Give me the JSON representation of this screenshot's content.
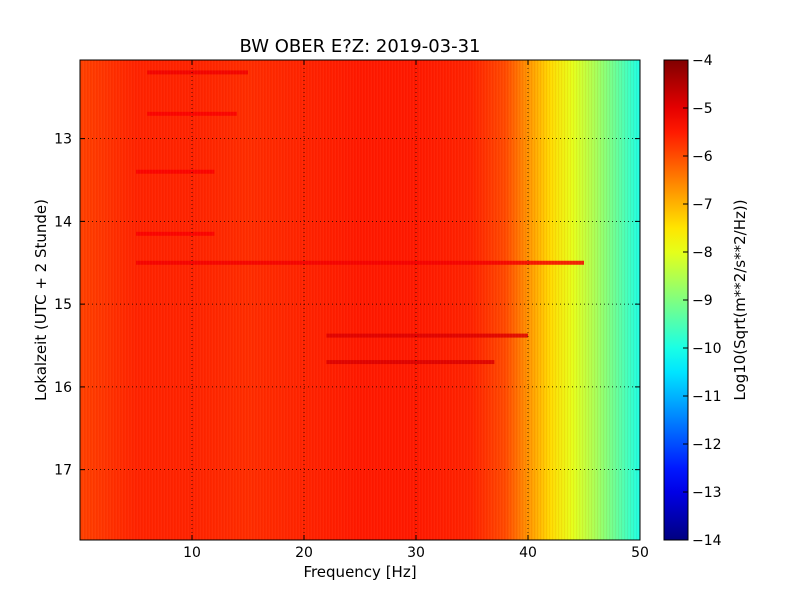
{
  "chart_data": {
    "type": "heatmap",
    "title": "BW OBER E?Z: 2019-03-31",
    "xlabel": "Frequency [Hz]",
    "ylabel": "Lokalzeit (UTC + 2 Stunde)",
    "xlim": [
      0,
      50
    ],
    "ylim": [
      12.05,
      17.85
    ],
    "y_inverted": true,
    "x_ticks": [
      10,
      20,
      30,
      40,
      50
    ],
    "x_tick_labels": [
      "10",
      "20",
      "30",
      "40",
      "50"
    ],
    "y_ticks": [
      13,
      14,
      15,
      16,
      17
    ],
    "y_tick_labels": [
      "13",
      "14",
      "15",
      "16",
      "17"
    ],
    "grid": true,
    "colorbar": {
      "label": "Log10(Sqrt(m**2/s**2/Hz))",
      "range": [
        -14,
        -4
      ],
      "ticks": [
        -4,
        -5,
        -6,
        -7,
        -8,
        -9,
        -10,
        -11,
        -12,
        -13,
        -14
      ],
      "tick_labels": [
        "−4",
        "−5",
        "−6",
        "−7",
        "−8",
        "−9",
        "−10",
        "−11",
        "−12",
        "−13",
        "−14"
      ],
      "colormap": "jet"
    },
    "spectrum_profile": {
      "frequency_hz": [
        0,
        5,
        10,
        15,
        20,
        25,
        30,
        35,
        38,
        40,
        42,
        44,
        46,
        48,
        50
      ],
      "log10_amplitude": [
        -5.9,
        -5.6,
        -5.6,
        -5.7,
        -5.6,
        -5.5,
        -5.5,
        -5.6,
        -6.0,
        -6.7,
        -7.4,
        -8.0,
        -8.6,
        -9.3,
        -10.0
      ]
    },
    "bands": [
      {
        "time": 12.2,
        "fmin": 6,
        "fmax": 15,
        "delta": 0.5
      },
      {
        "time": 12.7,
        "fmin": 6,
        "fmax": 14,
        "delta": 0.4
      },
      {
        "time": 13.4,
        "fmin": 5,
        "fmax": 12,
        "delta": 0.4
      },
      {
        "time": 14.15,
        "fmin": 5,
        "fmax": 12,
        "delta": 0.4
      },
      {
        "time": 14.5,
        "fmin": 5,
        "fmax": 45,
        "delta": 0.35
      },
      {
        "time": 15.38,
        "fmin": 22,
        "fmax": 40,
        "delta": 0.6
      },
      {
        "time": 15.7,
        "fmin": 22,
        "fmax": 37,
        "delta": 0.6
      }
    ]
  }
}
